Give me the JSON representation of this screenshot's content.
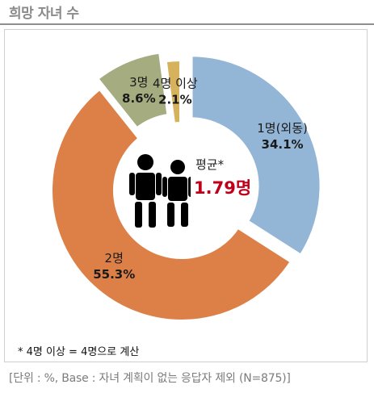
{
  "title": "희망 자녀 수",
  "chart_data": {
    "type": "pie",
    "variant": "donut",
    "categories": [
      "1명(외동)",
      "2명",
      "3명",
      "4명 이상"
    ],
    "values": [
      34.1,
      55.3,
      8.6,
      2.1
    ],
    "value_labels": [
      "34.1%",
      "55.3%",
      "8.6%",
      "2.1%"
    ],
    "colors": [
      "#94b6d6",
      "#dd8048",
      "#a5ac80",
      "#d6b25c"
    ],
    "exploded": [
      true,
      false,
      true,
      false
    ],
    "center": {
      "label": "평균*",
      "value": "1.79명",
      "value_color": "#c0001a"
    }
  },
  "footnote": "* 4명 이상 = 4명으로 계산",
  "source": "[단위 : %, Base : 자녀 계획이 없는 응답자 제외 (N=875)]"
}
